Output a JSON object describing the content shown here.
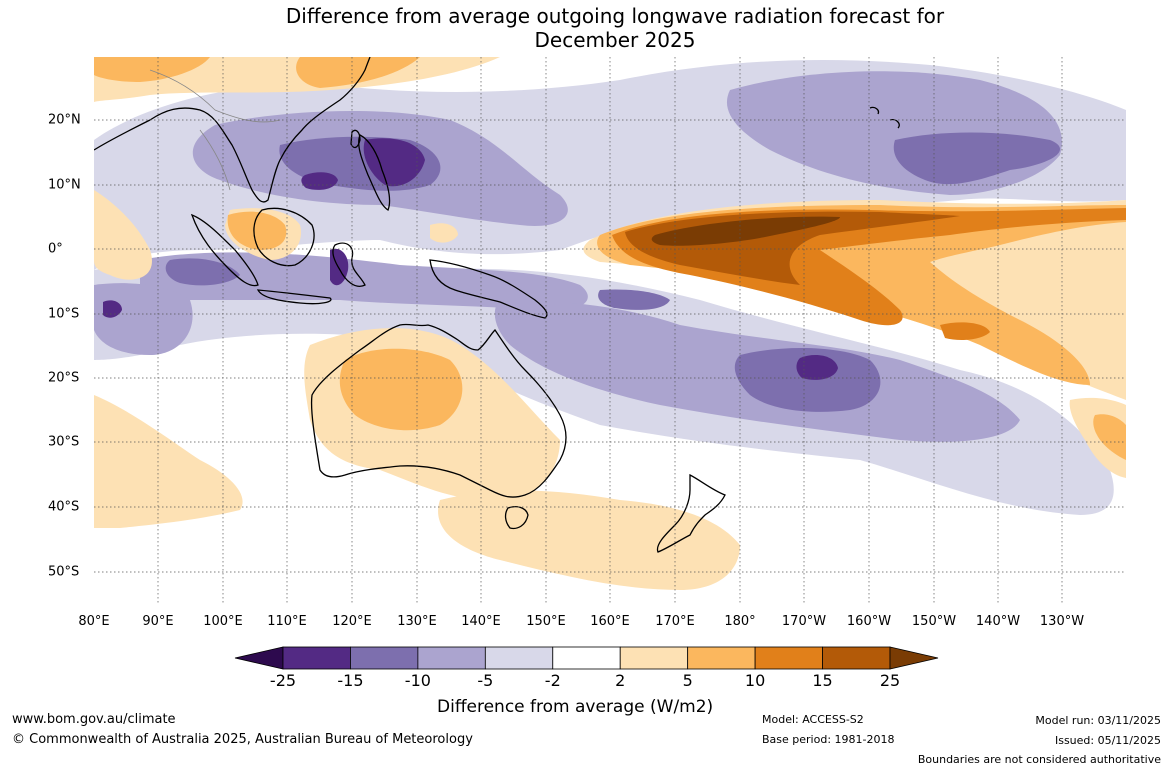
{
  "title": {
    "line1": "Difference from average outgoing longwave radiation forecast for",
    "line2": "December 2025"
  },
  "map": {
    "lon_labels": [
      "80°E",
      "90°E",
      "100°E",
      "110°E",
      "120°E",
      "130°E",
      "140°E",
      "150°E",
      "160°E",
      "170°E",
      "180°",
      "170°W",
      "160°W",
      "150°W",
      "140°W",
      "130°W"
    ],
    "lat_labels": [
      "20°N",
      "10°N",
      "0°",
      "10°S",
      "20°S",
      "30°S",
      "40°S",
      "50°S"
    ]
  },
  "colorbar": {
    "ticks": [
      "-25",
      "-15",
      "-10",
      "-5",
      "-2",
      "2",
      "5",
      "10",
      "15",
      "25"
    ],
    "colors": [
      "#2d0a4e",
      "#532a84",
      "#7d6fae",
      "#aba4cf",
      "#d8d8e9",
      "#ffffff",
      "#fde1b4",
      "#fbb75e",
      "#e1801a",
      "#b35a08",
      "#7a3c04"
    ],
    "title": "Difference from average (W/m2)"
  },
  "footer": {
    "url": "www.bom.gov.au/climate",
    "copyright": "© Commonwealth of Australia 2025, Australian Bureau of Meteorology",
    "model": "Model: ACCESS-S2",
    "base_period": "Base period: 1981-2018",
    "model_run": "Model run: 03/11/2025",
    "issued": "Issued: 05/11/2025",
    "disclaimer": "Boundaries are not considered authoritative"
  }
}
